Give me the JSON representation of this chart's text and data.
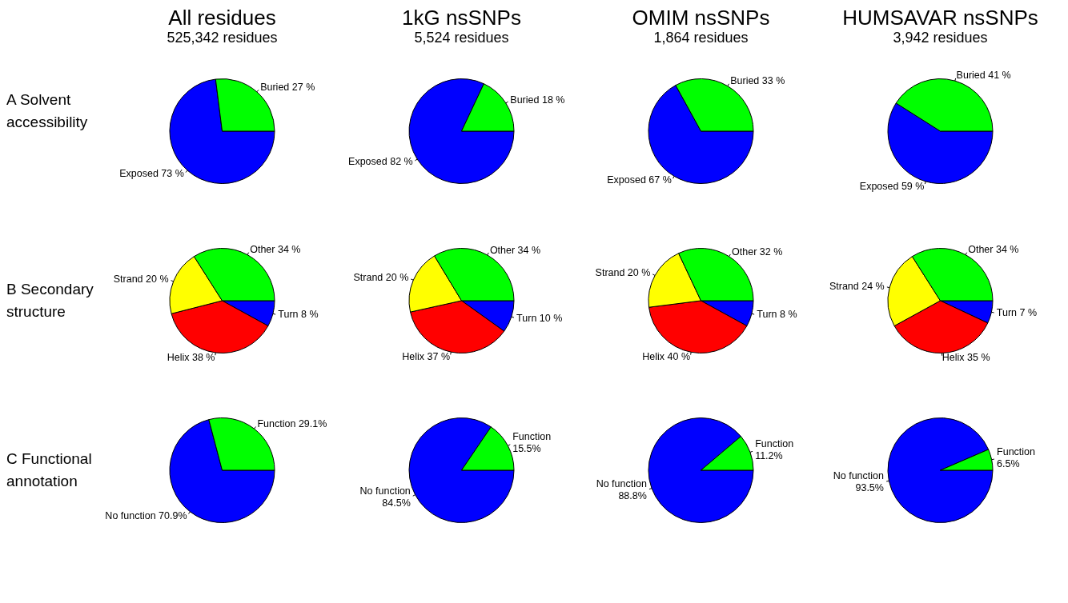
{
  "chart_data": [
    {
      "type": "pie",
      "title": "All residues",
      "subtitle": "525,342 residues",
      "annotations": [
        "A Solvent accessibility"
      ],
      "categories": [
        "Exposed",
        "Buried"
      ],
      "values": [
        73,
        27
      ],
      "colors": [
        "#0000ff",
        "#00ff00"
      ],
      "value_labels": [
        "73 %",
        "27 %"
      ]
    },
    {
      "type": "pie",
      "title": "1kG nsSNPs",
      "subtitle": "5,524 residues",
      "categories": [
        "Exposed",
        "Buried"
      ],
      "values": [
        82,
        18
      ],
      "colors": [
        "#0000ff",
        "#00ff00"
      ],
      "value_labels": [
        "82 %",
        "18 %"
      ]
    },
    {
      "type": "pie",
      "title": "OMIM nsSNPs",
      "subtitle": "1,864 residues",
      "categories": [
        "Exposed",
        "Buried"
      ],
      "values": [
        67,
        33
      ],
      "colors": [
        "#0000ff",
        "#00ff00"
      ],
      "value_labels": [
        "67 %",
        "33 %"
      ]
    },
    {
      "type": "pie",
      "title": "HUMSAVAR nsSNPs",
      "subtitle": "3,942 residues",
      "categories": [
        "Exposed",
        "Buried"
      ],
      "values": [
        59,
        41
      ],
      "colors": [
        "#0000ff",
        "#00ff00"
      ],
      "value_labels": [
        "59 %",
        "41 %"
      ]
    },
    {
      "type": "pie",
      "annotations": [
        "B Secondary structure"
      ],
      "categories": [
        "Turn",
        "Helix",
        "Strand",
        "Other"
      ],
      "values": [
        8,
        38,
        20,
        34
      ],
      "colors": [
        "#0000ff",
        "#ff0000",
        "#ffff00",
        "#00ff00"
      ],
      "value_labels": [
        "8 %",
        "38 %",
        "20 %",
        "34 %"
      ]
    },
    {
      "type": "pie",
      "categories": [
        "Turn",
        "Helix",
        "Strand",
        "Other"
      ],
      "values": [
        10,
        37,
        20,
        34
      ],
      "colors": [
        "#0000ff",
        "#ff0000",
        "#ffff00",
        "#00ff00"
      ],
      "value_labels": [
        "10 %",
        "37 %",
        "20 %",
        "34 %"
      ]
    },
    {
      "type": "pie",
      "categories": [
        "Turn",
        "Helix",
        "Strand",
        "Other"
      ],
      "values": [
        8,
        40,
        20,
        32
      ],
      "colors": [
        "#0000ff",
        "#ff0000",
        "#ffff00",
        "#00ff00"
      ],
      "value_labels": [
        "8 %",
        "40 %",
        "20 %",
        "32 %"
      ]
    },
    {
      "type": "pie",
      "categories": [
        "Turn",
        "Helix",
        "Strand",
        "Other"
      ],
      "values": [
        7,
        35,
        24,
        34
      ],
      "colors": [
        "#0000ff",
        "#ff0000",
        "#ffff00",
        "#00ff00"
      ],
      "value_labels": [
        "7 %",
        "35 %",
        "24 %",
        "34 %"
      ]
    },
    {
      "type": "pie",
      "annotations": [
        "C Functional annotation"
      ],
      "categories": [
        "No function",
        "Function"
      ],
      "values": [
        70.9,
        29.1
      ],
      "colors": [
        "#0000ff",
        "#00ff00"
      ],
      "value_labels": [
        "70.9%",
        "29.1%"
      ]
    },
    {
      "type": "pie",
      "categories": [
        "No function",
        "Function"
      ],
      "values": [
        84.5,
        15.5
      ],
      "colors": [
        "#0000ff",
        "#00ff00"
      ],
      "value_labels": [
        "84.5%",
        "15.5%"
      ]
    },
    {
      "type": "pie",
      "categories": [
        "No function",
        "Function"
      ],
      "values": [
        88.8,
        11.2
      ],
      "colors": [
        "#0000ff",
        "#00ff00"
      ],
      "value_labels": [
        "88.8%",
        "11.2%"
      ]
    },
    {
      "type": "pie",
      "categories": [
        "No function",
        "Function"
      ],
      "values": [
        93.5,
        6.5
      ],
      "colors": [
        "#0000ff",
        "#00ff00"
      ],
      "value_labels": [
        "93.5%",
        "6.5%"
      ]
    }
  ]
}
